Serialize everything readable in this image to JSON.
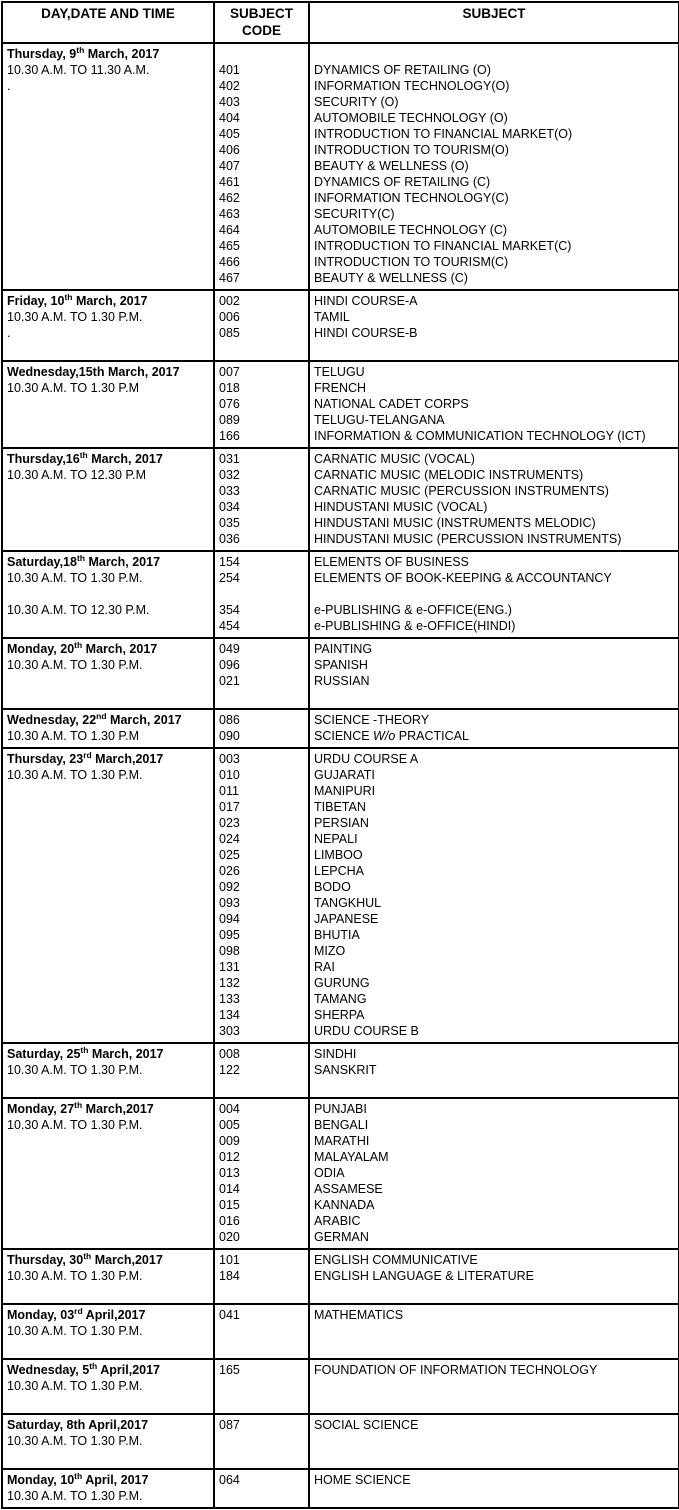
{
  "colors": {
    "border": "#000000",
    "text": "#000000",
    "background": "#ffffff"
  },
  "table": {
    "headers": [
      "DAY,DATE AND TIME",
      "SUBJECT CODE",
      "SUBJECT"
    ],
    "groups": [
      {
        "col1_lines": [
          {
            "bold": true,
            "segments": [
              {
                "t": "Thursday, 9"
              },
              {
                "t": "th",
                "sup": true
              },
              {
                "t": " March, 2017"
              }
            ]
          },
          {
            "segments": [
              {
                "t": "10.30 A.M. TO 11.30 A.M."
              }
            ]
          },
          {
            "segments": [
              {
                "t": "."
              }
            ]
          }
        ],
        "entries": [
          null,
          {
            "code": "401",
            "name": "DYNAMICS OF RETAILING (O)"
          },
          {
            "code": "402",
            "name": "INFORMATION TECHNOLOGY(O)"
          },
          {
            "code": "403",
            "name": "SECURITY (O)"
          },
          {
            "code": "404",
            "name": "AUTOMOBILE TECHNOLOGY (O)"
          },
          {
            "code": "405",
            "name": "INTRODUCTION TO FINANCIAL MARKET(O)"
          },
          {
            "code": "406",
            "name": "INTRODUCTION TO TOURISM(O)"
          },
          {
            "code": "407",
            "name": "BEAUTY & WELLNESS (O)"
          },
          {
            "code": "461",
            "name": "DYNAMICS OF RETAILING (C)"
          },
          {
            "code": "462",
            "name": "INFORMATION TECHNOLOGY(C)"
          },
          {
            "code": "463",
            "name": "SECURITY(C)"
          },
          {
            "code": "464",
            "name": "AUTOMOBILE TECHNOLOGY (C)"
          },
          {
            "code": "465",
            "name": "INTRODUCTION TO FINANCIAL MARKET(C)"
          },
          {
            "code": "466",
            "name": "INTRODUCTION TO TOURISM(C)"
          },
          {
            "code": "467",
            "name": "BEAUTY & WELLNESS (C)"
          }
        ]
      },
      {
        "col1_lines": [
          {
            "bold": true,
            "segments": [
              {
                "t": "Friday, 10"
              },
              {
                "t": "th",
                "sup": true
              },
              {
                "t": " March, 2017"
              }
            ]
          },
          {
            "segments": [
              {
                "t": "10.30 A.M. TO 1.30 P.M."
              }
            ]
          },
          {
            "segments": [
              {
                "t": "."
              }
            ]
          }
        ],
        "entries": [
          {
            "code": "002",
            "name": "HINDI COURSE-A"
          },
          {
            "code": "006",
            "name": "TAMIL"
          },
          {
            "code": "085",
            "name": "HINDI COURSE-B"
          },
          null
        ]
      },
      {
        "col1_lines": [
          {
            "bold": true,
            "segments": [
              {
                "t": "Wednesday,15th March, 2017"
              }
            ]
          },
          {
            "segments": [
              {
                "t": "10.30 A.M. TO 1.30 P.M"
              }
            ]
          }
        ],
        "entries": [
          {
            "code": "007",
            "name": "TELUGU"
          },
          {
            "code": "018",
            "name": "FRENCH"
          },
          {
            "code": "076",
            "name": "NATIONAL CADET CORPS"
          },
          {
            "code": "089",
            "name": "TELUGU-TELANGANA"
          },
          {
            "code": "166",
            "name": "INFORMATION & COMMUNICATION TECHNOLOGY (ICT)"
          }
        ]
      },
      {
        "col1_lines": [
          {
            "bold": true,
            "segments": [
              {
                "t": "Thursday,16"
              },
              {
                "t": "th",
                "sup": true
              },
              {
                "t": " March, 2017"
              }
            ]
          },
          {
            "segments": [
              {
                "t": "10.30 A.M. TO 12.30 P.M"
              }
            ]
          }
        ],
        "entries": [
          {
            "code": "031",
            "name": "CARNATIC MUSIC (VOCAL)"
          },
          {
            "code": "032",
            "name": "CARNATIC MUSIC (MELODIC INSTRUMENTS)"
          },
          {
            "code": "033",
            "name": "CARNATIC MUSIC (PERCUSSION INSTRUMENTS)"
          },
          {
            "code": "034",
            "name": "HINDUSTANI MUSIC (VOCAL)"
          },
          {
            "code": "035",
            "name": "HINDUSTANI MUSIC (INSTRUMENTS MELODIC)"
          },
          {
            "code": "036",
            "name": "HINDUSTANI MUSIC (PERCUSSION INSTRUMENTS)"
          }
        ]
      },
      {
        "col1_lines": [
          {
            "bold": true,
            "segments": [
              {
                "t": "Saturday,18"
              },
              {
                "t": "th",
                "sup": true
              },
              {
                "t": " March, 2017"
              }
            ]
          },
          {
            "segments": [
              {
                "t": "10.30 A.M. TO 1.30 P.M."
              }
            ]
          },
          {
            "segments": [
              {
                "t": ""
              }
            ]
          },
          {
            "segments": [
              {
                "t": "10.30 A.M. TO 12.30 P.M."
              }
            ]
          }
        ],
        "entries": [
          {
            "code": "154",
            "name": "ELEMENTS OF BUSINESS"
          },
          {
            "code": "254",
            "name": "ELEMENTS OF BOOK-KEEPING & ACCOUNTANCY"
          },
          null,
          {
            "code": "354",
            "name": "e-PUBLISHING & e-OFFICE(ENG.)"
          },
          {
            "code": "454",
            "name": "e-PUBLISHING & e-OFFICE(HINDI)"
          }
        ]
      },
      {
        "col1_lines": [
          {
            "bold": true,
            "segments": [
              {
                "t": "Monday, 20"
              },
              {
                "t": "th",
                "sup": true
              },
              {
                "t": " March, 2017"
              }
            ]
          },
          {
            "segments": [
              {
                "t": "10.30 A.M. TO 1.30 P.M."
              }
            ]
          }
        ],
        "entries": [
          {
            "code": "049",
            "name": "PAINTING"
          },
          {
            "code": "096",
            "name": "SPANISH"
          },
          {
            "code": "021",
            "name": "RUSSIAN"
          },
          null
        ]
      },
      {
        "col1_lines": [
          {
            "bold": true,
            "segments": [
              {
                "t": "Wednesday, 22"
              },
              {
                "t": "nd",
                "sup": true
              },
              {
                "t": " March, 2017"
              }
            ]
          },
          {
            "segments": [
              {
                "t": "10.30 A.M. TO 1.30 P.M"
              }
            ]
          }
        ],
        "entries": [
          {
            "code": "086",
            "name": "SCIENCE -THEORY"
          },
          {
            "code": "090",
            "name_segments": [
              {
                "t": "SCIENCE "
              },
              {
                "t": "W/o",
                "i": true
              },
              {
                "t": " PRACTICAL"
              }
            ],
            "name": "SCIENCE W/o PRACTICAL"
          }
        ]
      },
      {
        "col1_lines": [
          {
            "bold": true,
            "segments": [
              {
                "t": "Thursday, 23"
              },
              {
                "t": "rd",
                "sup": true
              },
              {
                "t": " March,2017"
              }
            ]
          },
          {
            "segments": [
              {
                "t": "10.30 A.M. TO 1.30 P.M."
              }
            ]
          }
        ],
        "entries": [
          {
            "code": "003",
            "name": "URDU COURSE A"
          },
          {
            "code": "010",
            "name": "GUJARATI"
          },
          {
            "code": "011",
            "name": "MANIPURI"
          },
          {
            "code": "017",
            "name": "TIBETAN"
          },
          {
            "code": "023",
            "name": "PERSIAN"
          },
          {
            "code": "024",
            "name": "NEPALI"
          },
          {
            "code": "025",
            "name": "LIMBOO"
          },
          {
            "code": "026",
            "name": "LEPCHA"
          },
          {
            "code": "092",
            "name": "BODO"
          },
          {
            "code": "093",
            "name": "TANGKHUL"
          },
          {
            "code": "094",
            "name": "JAPANESE"
          },
          {
            "code": "095",
            "name": "BHUTIA"
          },
          {
            "code": "098",
            "name": "MIZO"
          },
          {
            "code": "131",
            "name": "RAI"
          },
          {
            "code": "132",
            "name": "GURUNG"
          },
          {
            "code": "133",
            "name": "TAMANG"
          },
          {
            "code": "134",
            "name": "SHERPA"
          },
          {
            "code": "303",
            "name": "URDU COURSE B"
          }
        ]
      },
      {
        "col1_lines": [
          {
            "bold": true,
            "segments": [
              {
                "t": "Saturday, 25"
              },
              {
                "t": "th",
                "sup": true
              },
              {
                "t": " March, 2017"
              }
            ]
          },
          {
            "segments": [
              {
                "t": "10.30 A.M. TO 1.30 P.M."
              }
            ]
          }
        ],
        "entries": [
          {
            "code": "008",
            "name": "SINDHI"
          },
          {
            "code": "122",
            "name": "SANSKRIT"
          },
          null
        ]
      },
      {
        "col1_lines": [
          {
            "bold": true,
            "segments": [
              {
                "t": "Monday, 27"
              },
              {
                "t": "th",
                "sup": true
              },
              {
                "t": " March,2017"
              }
            ]
          },
          {
            "segments": [
              {
                "t": "10.30 A.M. TO 1.30 P.M."
              }
            ]
          }
        ],
        "entries": [
          {
            "code": "004",
            "name": "PUNJABI"
          },
          {
            "code": "005",
            "name": "BENGALI"
          },
          {
            "code": "009",
            "name": "MARATHI"
          },
          {
            "code": "012",
            "name": "MALAYALAM"
          },
          {
            "code": "013",
            "name": "ODIA"
          },
          {
            "code": "014",
            "name": "ASSAMESE"
          },
          {
            "code": "015",
            "name": "KANNADA"
          },
          {
            "code": "016",
            "name": "ARABIC"
          },
          {
            "code": "020",
            "name": "GERMAN"
          }
        ]
      },
      {
        "col1_lines": [
          {
            "bold": true,
            "segments": [
              {
                "t": "Thursday, 30"
              },
              {
                "t": "th",
                "sup": true
              },
              {
                "t": " March,2017"
              }
            ]
          },
          {
            "segments": [
              {
                "t": "10.30 A.M. TO 1.30 P.M."
              }
            ]
          }
        ],
        "entries": [
          {
            "code": "101",
            "name": "ENGLISH COMMUNICATIVE"
          },
          {
            "code": "184",
            "name": "ENGLISH LANGUAGE & LITERATURE"
          },
          null
        ]
      },
      {
        "col1_lines": [
          {
            "bold": true,
            "segments": [
              {
                "t": "Monday, 03"
              },
              {
                "t": "rd",
                "sup": true
              },
              {
                "t": " April,2017"
              }
            ]
          },
          {
            "segments": [
              {
                "t": "10.30 A.M. TO 1.30 P.M."
              }
            ]
          }
        ],
        "entries": [
          {
            "code": "041",
            "name": "MATHEMATICS"
          },
          null,
          null
        ]
      },
      {
        "col1_lines": [
          {
            "bold": true,
            "segments": [
              {
                "t": "Wednesday, 5"
              },
              {
                "t": "th",
                "sup": true
              },
              {
                "t": " April,2017"
              }
            ]
          },
          {
            "segments": [
              {
                "t": "10.30 A.M. TO 1.30 P.M."
              }
            ]
          }
        ],
        "entries": [
          {
            "code": "165",
            "name": "FOUNDATION OF INFORMATION TECHNOLOGY"
          },
          null,
          null
        ]
      },
      {
        "col1_lines": [
          {
            "bold": true,
            "segments": [
              {
                "t": "Saturday, 8th April,2017"
              }
            ]
          },
          {
            "segments": [
              {
                "t": "10.30 A.M. TO 1.30 P.M."
              }
            ]
          }
        ],
        "entries": [
          {
            "code": "087",
            "name": "SOCIAL SCIENCE"
          },
          null,
          null
        ]
      },
      {
        "col1_lines": [
          {
            "bold": true,
            "segments": [
              {
                "t": "Monday, 10"
              },
              {
                "t": "th",
                "sup": true
              },
              {
                "t": " April, 2017"
              }
            ]
          },
          {
            "segments": [
              {
                "t": "10.30 A.M. TO 1.30 P.M."
              }
            ]
          }
        ],
        "entries": [
          {
            "code": "064",
            "name": "HOME SCIENCE"
          }
        ]
      }
    ]
  }
}
